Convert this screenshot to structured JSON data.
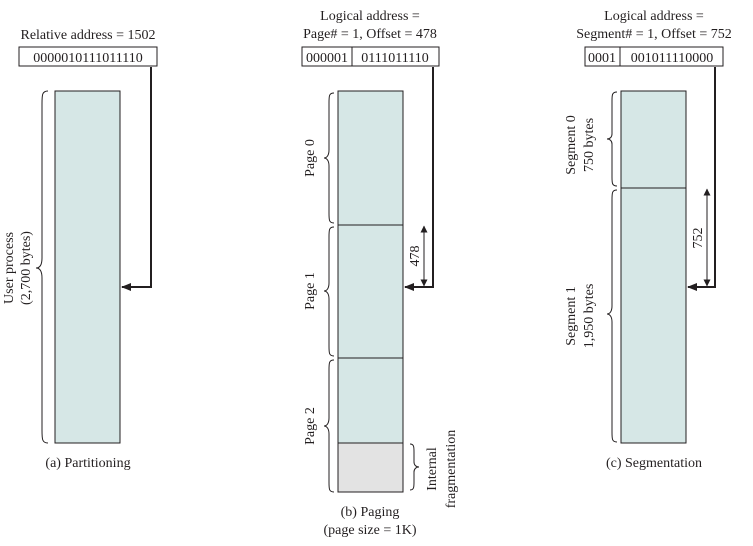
{
  "partitioning": {
    "address_label": "Relative address = 1502",
    "bits": "0000010111011110",
    "process_label_1": "User process",
    "process_label_2": "(2,700 bytes)",
    "caption": "(a) Partitioning"
  },
  "paging": {
    "title_1": "Logical address =",
    "title_2": "Page# = 1, Offset = 478",
    "bits_page": "000001",
    "bits_offset": "0111011110",
    "pages": [
      "Page 0",
      "Page 1",
      "Page 2"
    ],
    "offset_label": "478",
    "frag_label_1": "Internal",
    "frag_label_2": "fragmentation",
    "caption_1": "(b) Paging",
    "caption_2": "(page size = 1K)"
  },
  "segmentation": {
    "title_1": "Logical address =",
    "title_2": "Segment# = 1, Offset = 752",
    "bits_segment": "0001",
    "bits_offset": "001011110000",
    "segments": [
      {
        "name": "Segment 0",
        "size": "750 bytes"
      },
      {
        "name": "Segment 1",
        "size": "1,950 bytes"
      }
    ],
    "offset_label": "752",
    "caption": "(c) Segmentation"
  }
}
